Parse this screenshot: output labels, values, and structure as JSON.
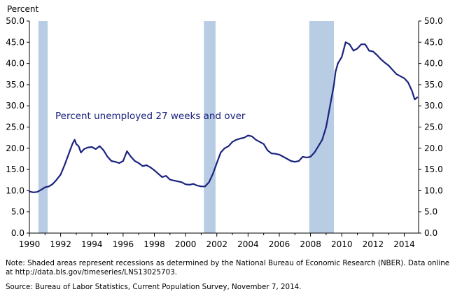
{
  "chart_data": {
    "type": "line",
    "ylabel": "Percent",
    "annotation": "Percent unemployed 27 weeks and over",
    "ylim": [
      0,
      50
    ],
    "xlim": [
      1990,
      2014.92
    ],
    "y_ticks": [
      "0.0",
      "5.0",
      "10.0",
      "15.0",
      "20.0",
      "25.0",
      "30.0",
      "35.0",
      "40.0",
      "45.0",
      "50.0"
    ],
    "x_ticks": [
      "1990",
      "1992",
      "1994",
      "1996",
      "1998",
      "2000",
      "2002",
      "2004",
      "2006",
      "2008",
      "2010",
      "2012",
      "2014"
    ],
    "grid": false,
    "colors": {
      "line": "#1a237e",
      "recession": "#b8cce4",
      "annotation": "#1a237e"
    },
    "recessions": [
      [
        1990.58,
        1991.17
      ],
      [
        2001.17,
        2001.92
      ],
      [
        2007.92,
        2009.5
      ]
    ],
    "series": [
      {
        "x": [
          1990.0,
          1990.25,
          1990.5,
          1990.75,
          1991.0,
          1991.25,
          1991.5,
          1991.75,
          1992.0,
          1992.25,
          1992.5,
          1992.75,
          1992.9,
          1993.0,
          1993.15,
          1993.3,
          1993.5,
          1993.75,
          1994.0,
          1994.25,
          1994.5,
          1994.75,
          1995.0,
          1995.25,
          1995.5,
          1995.75,
          1996.0,
          1996.25,
          1996.5,
          1996.75,
          1997.0,
          1997.25,
          1997.5,
          1997.75,
          1998.0,
          1998.25,
          1998.5,
          1998.75,
          1999.0,
          1999.25,
          1999.5,
          1999.75,
          2000.0,
          2000.25,
          2000.5,
          2000.75,
          2001.0,
          2001.25,
          2001.5,
          2001.75,
          2002.0,
          2002.25,
          2002.5,
          2002.75,
          2003.0,
          2003.25,
          2003.5,
          2003.75,
          2004.0,
          2004.25,
          2004.5,
          2004.75,
          2005.0,
          2005.25,
          2005.5,
          2005.75,
          2006.0,
          2006.25,
          2006.5,
          2006.75,
          2007.0,
          2007.25,
          2007.5,
          2007.75,
          2008.0,
          2008.25,
          2008.5,
          2008.75,
          2009.0,
          2009.25,
          2009.5,
          2009.6,
          2009.75,
          2010.0,
          2010.25,
          2010.5,
          2010.75,
          2011.0,
          2011.25,
          2011.5,
          2011.75,
          2012.0,
          2012.25,
          2012.5,
          2012.75,
          2013.0,
          2013.25,
          2013.5,
          2013.75,
          2014.0,
          2014.25,
          2014.5,
          2014.67,
          2014.83
        ],
        "y": [
          9.8,
          9.6,
          9.7,
          10.2,
          10.8,
          11.0,
          11.6,
          12.6,
          13.8,
          16.0,
          18.5,
          21.0,
          22.0,
          21.0,
          20.5,
          19.0,
          19.8,
          20.2,
          20.3,
          19.8,
          20.5,
          19.5,
          18.0,
          17.0,
          16.8,
          16.5,
          17.0,
          19.3,
          18.0,
          17.0,
          16.5,
          15.8,
          16.0,
          15.5,
          14.8,
          14.0,
          13.2,
          13.5,
          12.6,
          12.4,
          12.2,
          12.0,
          11.5,
          11.4,
          11.6,
          11.2,
          11.0,
          11.0,
          12.0,
          14.0,
          16.5,
          19.0,
          20.0,
          20.5,
          21.5,
          22.0,
          22.3,
          22.5,
          23.0,
          22.8,
          22.0,
          21.5,
          21.0,
          19.5,
          18.8,
          18.7,
          18.5,
          18.0,
          17.5,
          17.0,
          16.8,
          17.0,
          18.0,
          17.8,
          18.0,
          19.0,
          20.5,
          22.0,
          25.0,
          30.0,
          35.0,
          38.0,
          40.0,
          41.5,
          45.0,
          44.5,
          43.0,
          43.5,
          44.5,
          44.5,
          43.0,
          42.8,
          42.0,
          41.0,
          40.2,
          39.5,
          38.5,
          37.5,
          37.0,
          36.5,
          35.5,
          33.5,
          31.5,
          32.0
        ]
      }
    ]
  },
  "note": "Note:  Shaded areas represent recessions as determined by the National Bureau of Economic Research (NBER).  Data online at http://data.bls.gov/timeseries/LNS13025703.",
  "source": "Source:  Bureau of Labor Statistics, Current Population Survey, November 7, 2014."
}
